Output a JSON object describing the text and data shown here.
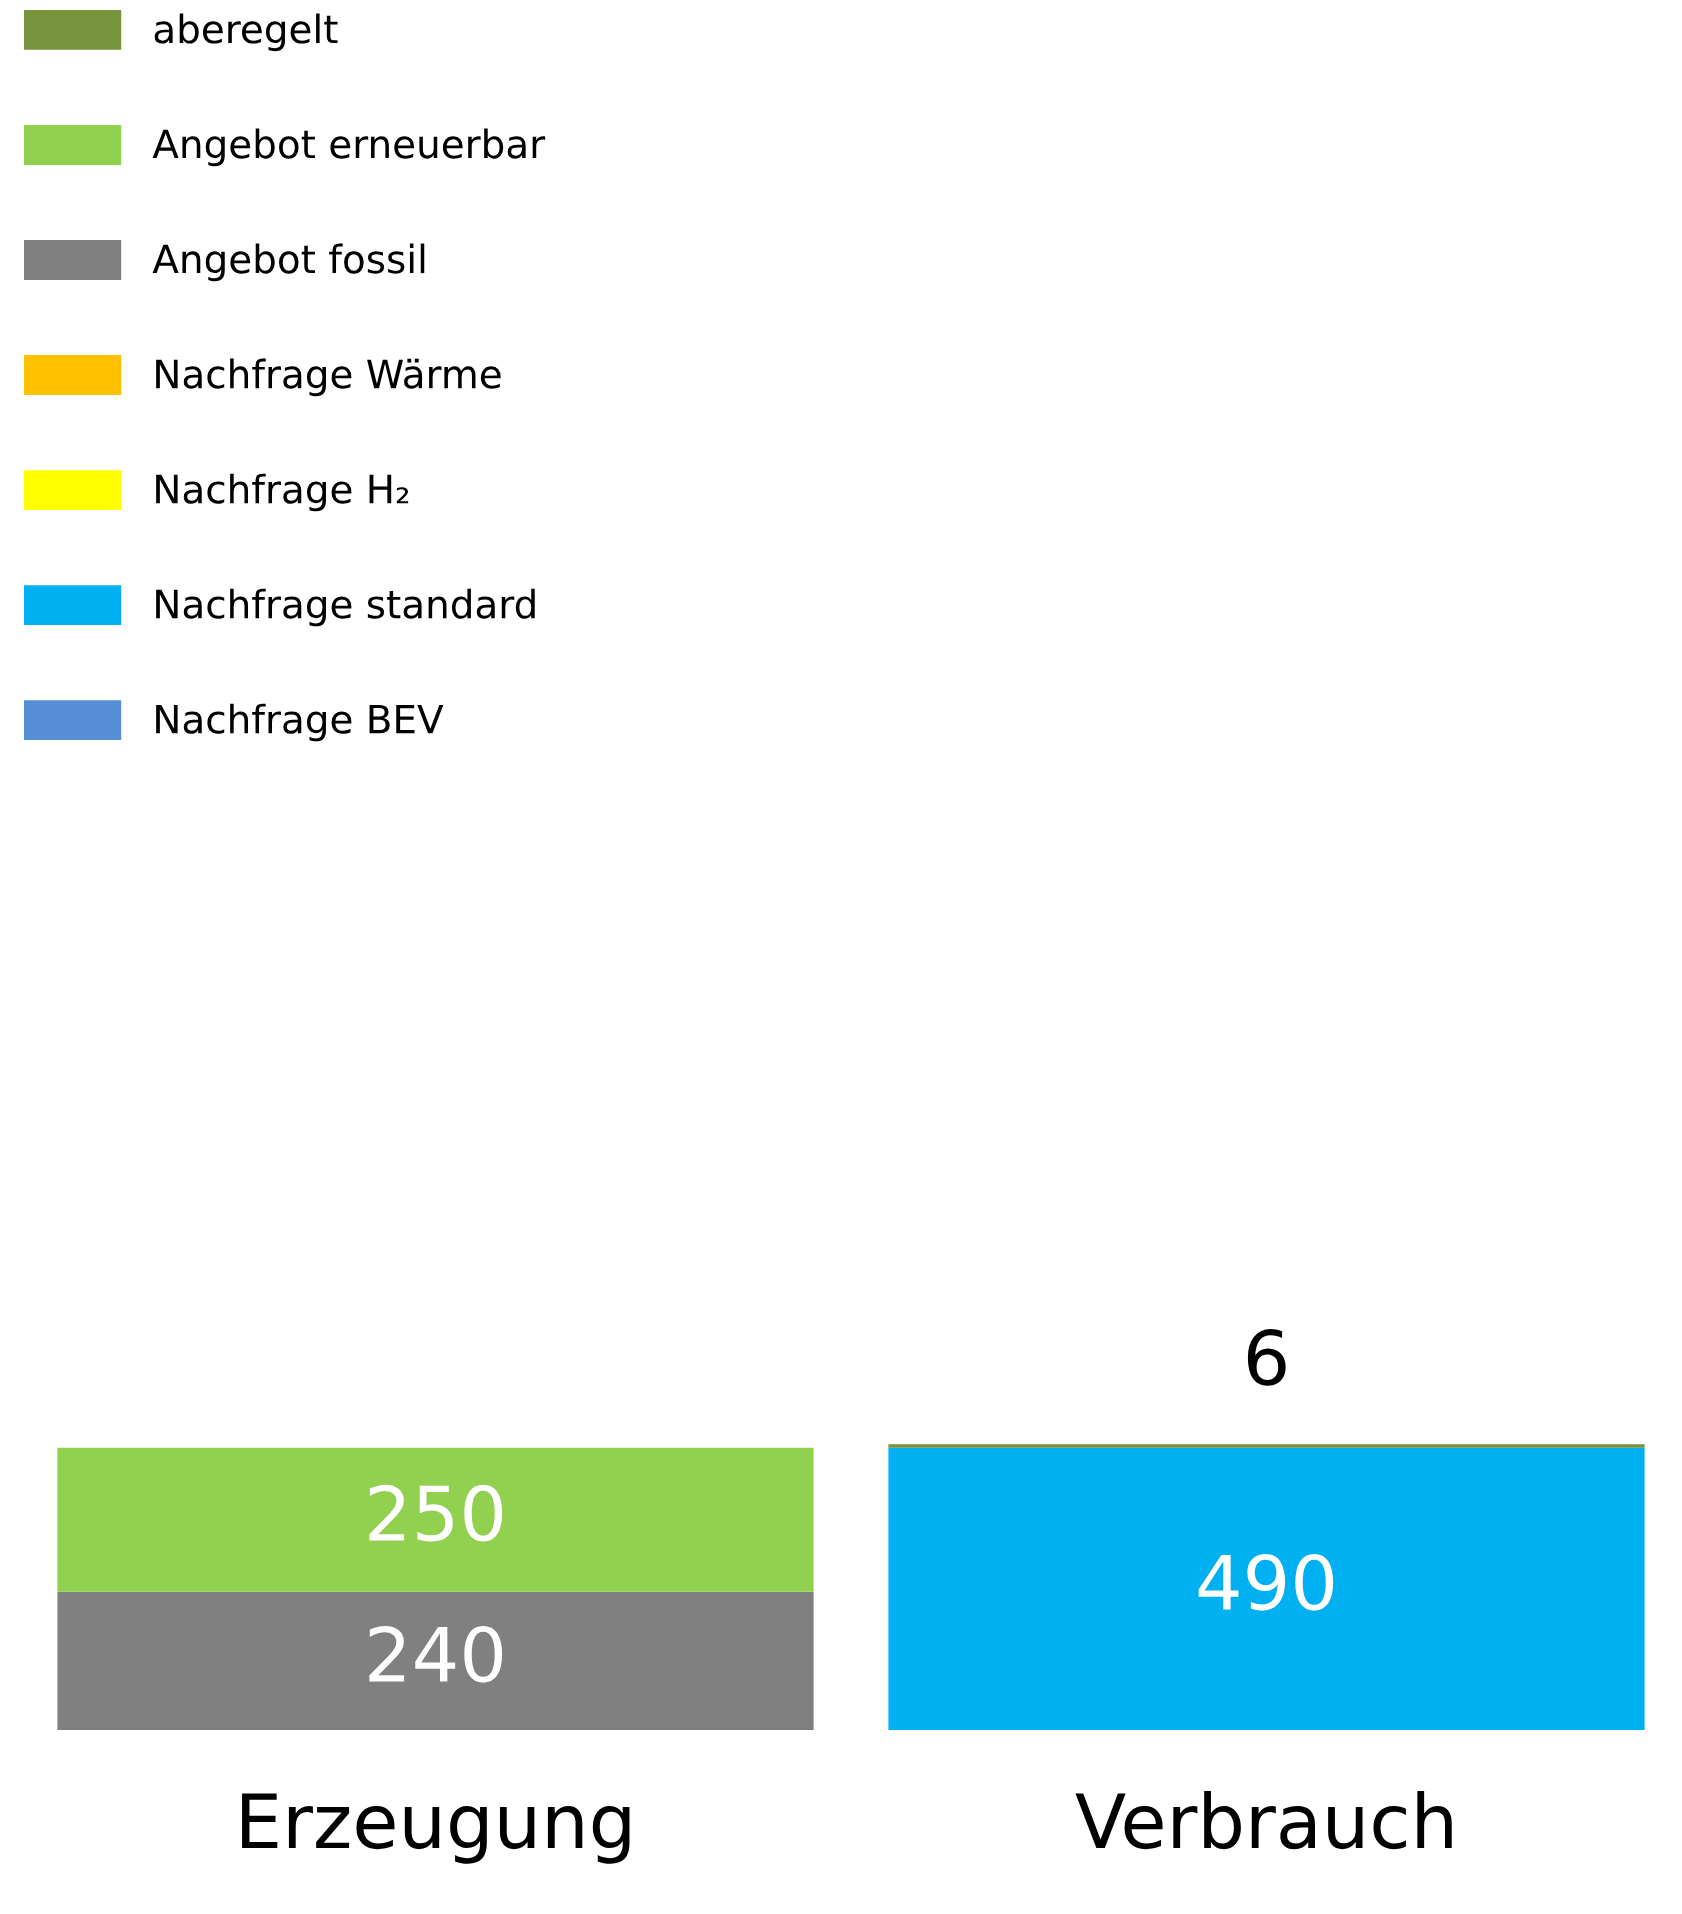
{
  "chart_data": {
    "type": "bar",
    "stacked": true,
    "data_labels": true,
    "grid": false,
    "legend": "top left",
    "categories": [
      "Erzeugung",
      "Verbrauch"
    ],
    "series": [
      {
        "name": "Nachfrage BEV",
        "color": "#558ed5",
        "values": [
          null,
          null
        ]
      },
      {
        "name": "Nachfrage standard",
        "color": "#00b0f0",
        "values": [
          null,
          490
        ]
      },
      {
        "name": "Nachfrage H₂",
        "color": "#ffff00",
        "values": [
          null,
          null
        ]
      },
      {
        "name": "Nachfrage Wärme",
        "color": "#ffc000",
        "values": [
          null,
          null
        ]
      },
      {
        "name": "Angebot fossil",
        "color": "#808080",
        "values": [
          240,
          null
        ]
      },
      {
        "name": "Angebot erneuerbar",
        "color": "#92d050",
        "values": [
          250,
          null
        ]
      },
      {
        "name": "aberegelt",
        "color": "#77933c",
        "values": [
          null,
          6
        ]
      }
    ]
  }
}
